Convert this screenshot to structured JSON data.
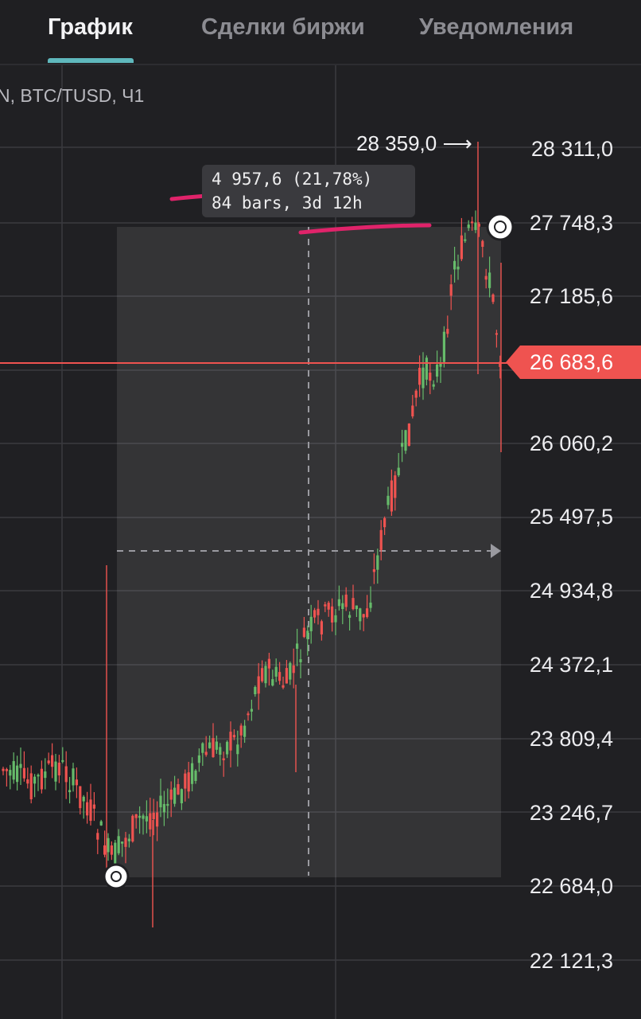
{
  "tabs": [
    {
      "label": "График",
      "active": true
    },
    {
      "label": "Сделки биржи",
      "active": false
    },
    {
      "label": "Уведомления",
      "active": false
    }
  ],
  "chart_header": {
    "symbol": "N, BTC/TUSD, Ч1"
  },
  "price_axis": {
    "labels": [
      "28 311,0",
      "27 748,3",
      "27 185,6",
      "26 060,2",
      "25 497,5",
      "24 934,8",
      "24 372,1",
      "23 809,4",
      "23 246,7",
      "22 684,0",
      "22 121,3"
    ]
  },
  "current_price": {
    "label": "26 683,6",
    "value": 26683.6,
    "color": "#ef5350"
  },
  "high_marker": {
    "label": "28 359,0",
    "arrow": "⟶"
  },
  "measurement": {
    "line1": "4 957,6 (21,78%)",
    "line2": "84 bars, 3d 12h",
    "from_price": 22760,
    "to_price": 27717.6
  },
  "colors": {
    "background": "#202023",
    "up": "#66bb6a",
    "down": "#ef5350",
    "accent_tab": "#5fb8bd",
    "annotation_underline": "#e0236a"
  }
}
